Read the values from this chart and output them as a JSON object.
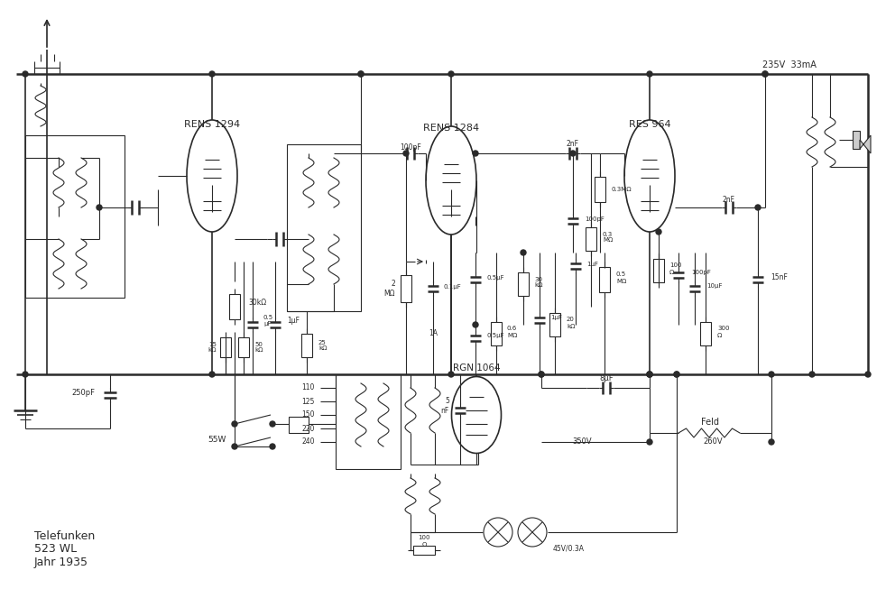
{
  "figsize": [
    9.82,
    6.53
  ],
  "dpi": 100,
  "bg_color": "#ffffff",
  "line_color": "#2a2a2a",
  "tube_labels": [
    "RENS 1294",
    "RENS 1284",
    "RES 964"
  ],
  "rectifier_label": "RGN 1064",
  "label_text_lines": [
    "Telefunken",
    "523 WL",
    "Jahr 1935"
  ],
  "voltage_label": "235V  33mA"
}
